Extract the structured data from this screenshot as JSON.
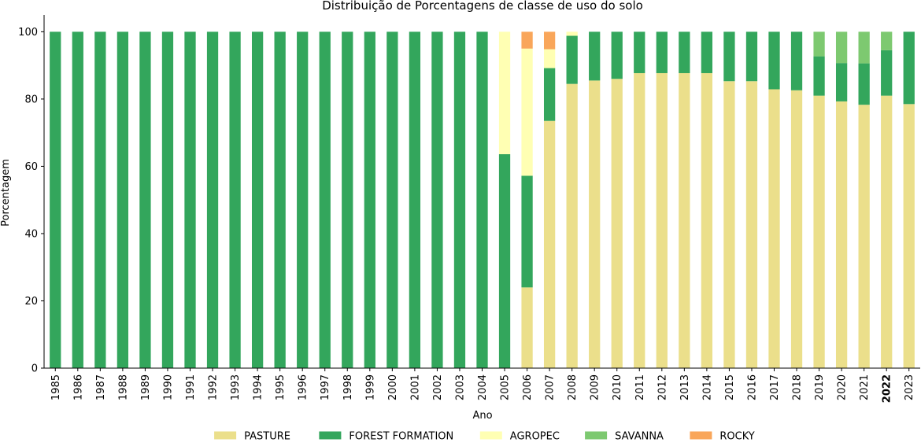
{
  "chart_data": {
    "type": "bar",
    "stacked": true,
    "title": "Distribuição de Porcentagens de classe de uso do solo",
    "xlabel": "Ano",
    "ylabel": "Porcentagem",
    "ylim": [
      0,
      105
    ],
    "yticks": [
      0,
      20,
      40,
      60,
      80,
      100
    ],
    "grid": false,
    "legend_position": "bottom-center",
    "highlighted_category": "2022",
    "categories": [
      "1985",
      "1986",
      "1987",
      "1988",
      "1989",
      "1990",
      "1991",
      "1992",
      "1993",
      "1994",
      "1995",
      "1996",
      "1997",
      "1998",
      "1999",
      "2000",
      "2001",
      "2002",
      "2003",
      "2004",
      "2005",
      "2006",
      "2007",
      "2008",
      "2009",
      "2010",
      "2011",
      "2012",
      "2013",
      "2014",
      "2015",
      "2016",
      "2017",
      "2018",
      "2019",
      "2020",
      "2021",
      "2022",
      "2023"
    ],
    "series": [
      {
        "name": "PASTURE",
        "color": "#ebdf8b",
        "values": [
          0,
          0,
          0,
          0,
          0,
          0,
          0,
          0,
          0,
          0,
          0,
          0,
          0,
          0,
          0,
          0,
          0,
          0,
          0,
          0,
          0,
          24,
          73.5,
          84.5,
          85.5,
          86,
          87.7,
          87.7,
          87.7,
          87.7,
          85.3,
          85.3,
          82.9,
          82.6,
          81,
          79.3,
          78.3,
          81,
          78.5
        ]
      },
      {
        "name": "FOREST FORMATION",
        "color": "#33a65c",
        "values": [
          100,
          100,
          100,
          100,
          100,
          100,
          100,
          100,
          100,
          100,
          100,
          100,
          100,
          100,
          100,
          100,
          100,
          100,
          100,
          100,
          63.6,
          33.2,
          15.7,
          14.3,
          14.5,
          14,
          12.3,
          12.3,
          12.3,
          12.3,
          14.7,
          14.7,
          17.1,
          17.4,
          11.7,
          11.4,
          12.3,
          13.5,
          21.5
        ]
      },
      {
        "name": "AGROPEC",
        "color": "#ffffb3",
        "values": [
          0,
          0,
          0,
          0,
          0,
          0,
          0,
          0,
          0,
          0,
          0,
          0,
          0,
          0,
          0,
          0,
          0,
          0,
          0,
          0,
          36.4,
          37.8,
          5.6,
          1.2,
          0,
          0,
          0,
          0,
          0,
          0,
          0,
          0,
          0,
          0,
          0,
          0,
          0,
          0,
          0
        ]
      },
      {
        "name": "SAVANNA",
        "color": "#7dc970",
        "values": [
          0,
          0,
          0,
          0,
          0,
          0,
          0,
          0,
          0,
          0,
          0,
          0,
          0,
          0,
          0,
          0,
          0,
          0,
          0,
          0,
          0,
          0,
          0,
          0,
          0,
          0,
          0,
          0,
          0,
          0,
          0,
          0,
          0,
          0,
          7.3,
          9.3,
          9.4,
          5.5,
          0
        ]
      },
      {
        "name": "ROCKY",
        "color": "#f9a65a",
        "values": [
          0,
          0,
          0,
          0,
          0,
          0,
          0,
          0,
          0,
          0,
          0,
          0,
          0,
          0,
          0,
          0,
          0,
          0,
          0,
          0,
          0,
          5,
          5.2,
          0,
          0,
          0,
          0,
          0,
          0,
          0,
          0,
          0,
          0,
          0,
          0,
          0,
          0,
          0,
          0
        ]
      }
    ]
  }
}
